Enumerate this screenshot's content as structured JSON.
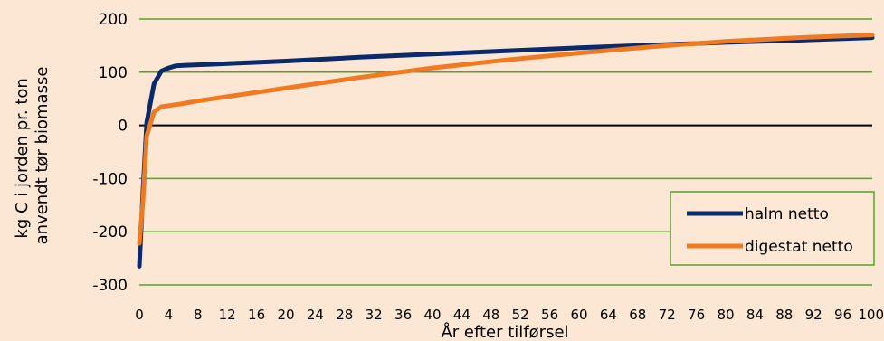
{
  "chart_data": {
    "type": "line",
    "xlabel": "År efter tilførsel",
    "ylabel": [
      "kg C i jorden pr. ton",
      "anvendt tør biomasse"
    ],
    "xlim": [
      0,
      100
    ],
    "ylim": [
      -300,
      200
    ],
    "x_ticks": [
      0,
      4,
      8,
      12,
      16,
      20,
      24,
      28,
      32,
      36,
      40,
      44,
      48,
      52,
      56,
      60,
      64,
      68,
      72,
      76,
      80,
      84,
      88,
      92,
      96,
      100
    ],
    "y_ticks": [
      200,
      100,
      0,
      -100,
      -200,
      -300
    ],
    "grid": true,
    "legend_position": "bottom-right",
    "colors": {
      "background": "#fbe7d3",
      "grid": "#5aa02c",
      "zero_line": "#000000",
      "legend_border": "#5aa02c",
      "legend_bg": "#fce8d5"
    },
    "series": [
      {
        "name": "halm netto",
        "color": "#0b2a6b",
        "x": [
          0,
          0.5,
          1,
          2,
          3,
          4,
          5,
          6,
          8,
          10,
          15,
          20,
          30,
          40,
          50,
          60,
          70,
          80,
          90,
          100
        ],
        "y": [
          -265,
          -120,
          5,
          78,
          102,
          108,
          112,
          113,
          114,
          115,
          118,
          121,
          128,
          134,
          140,
          146,
          151,
          156,
          160,
          165
        ]
      },
      {
        "name": "digestat netto",
        "color": "#f07a22",
        "x": [
          0,
          0.5,
          1,
          2,
          3,
          4,
          5,
          6,
          8,
          10,
          15,
          20,
          30,
          40,
          50,
          60,
          70,
          80,
          90,
          100
        ],
        "y": [
          -222,
          -140,
          -20,
          25,
          35,
          37,
          39,
          41,
          46,
          50,
          60,
          70,
          90,
          108,
          123,
          136,
          148,
          158,
          165,
          170
        ]
      }
    ]
  }
}
